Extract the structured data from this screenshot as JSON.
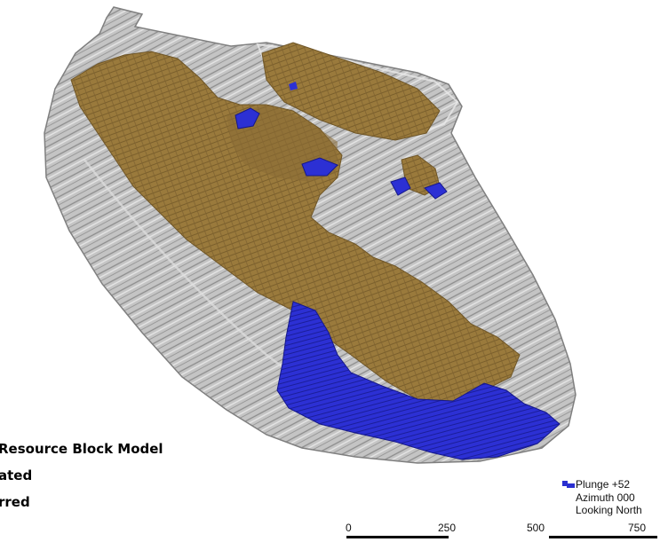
{
  "legend": {
    "line1": "Resource Block Model",
    "line2": "ated",
    "line3": "rred"
  },
  "orientation": {
    "plunge": "Plunge +52",
    "azimuth": "Azimuth 000",
    "looking": "Looking North"
  },
  "scale_bar": {
    "ticks": [
      "0",
      "250",
      "500",
      "750"
    ]
  },
  "colors": {
    "pit_shell": "#b9b9b9",
    "pit_lines": "#8a8a8a",
    "indicated_block": "#96773a",
    "inferred_block": "#2a2fd0"
  }
}
